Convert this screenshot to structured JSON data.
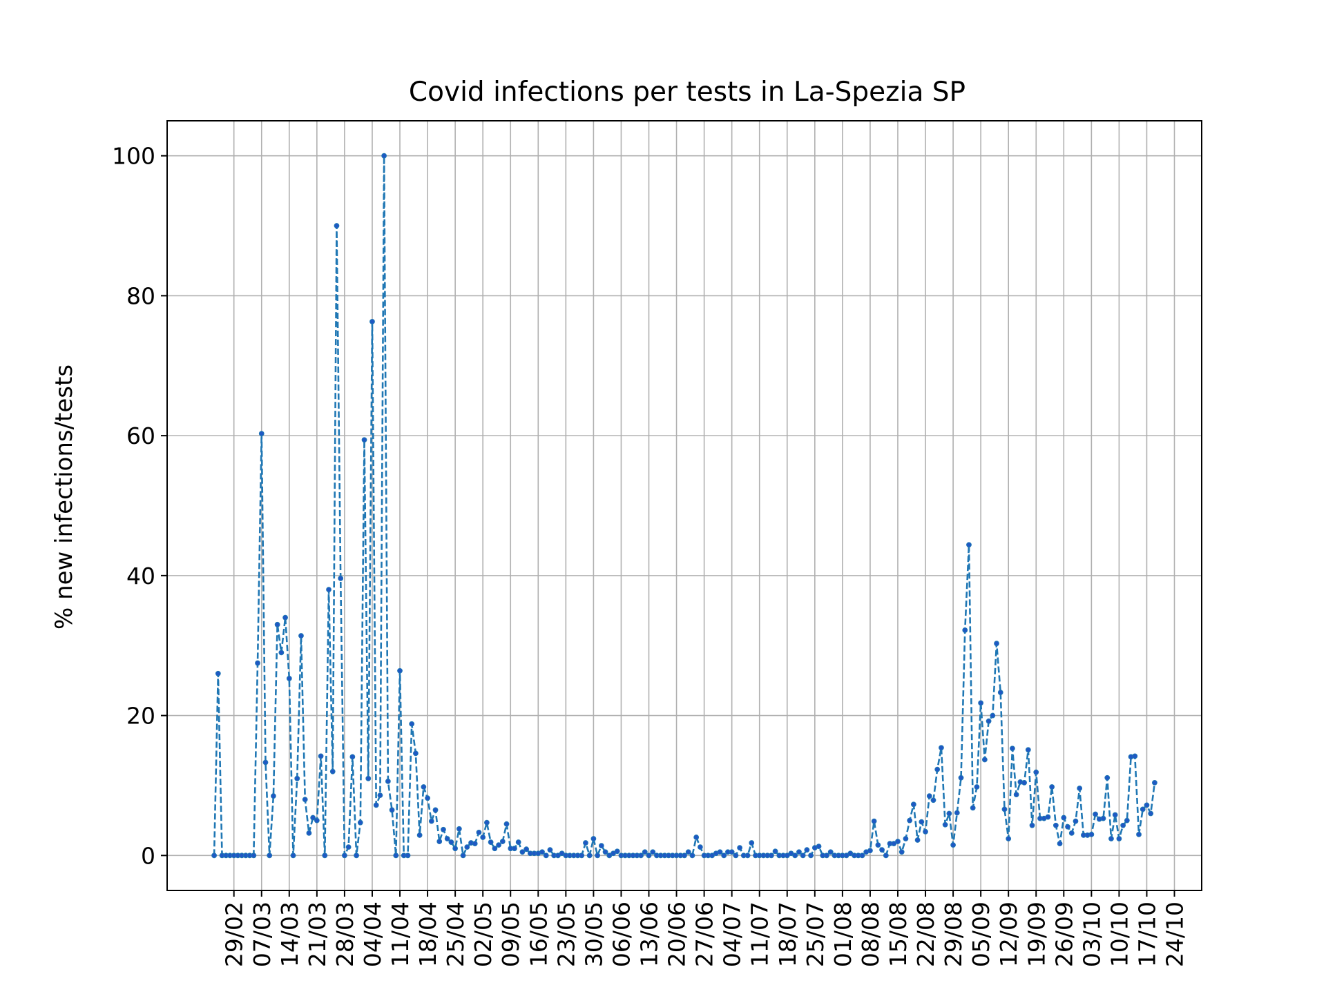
{
  "chart_data": {
    "type": "line",
    "title": "Covid infections per tests in La-Spezia SP",
    "xlabel": "",
    "ylabel": "% new infections/tests",
    "ylim": [
      -5,
      105
    ],
    "yticks": [
      0,
      20,
      40,
      60,
      80,
      100
    ],
    "x_tick_labels": [
      "29/02",
      "07/03",
      "14/03",
      "21/03",
      "28/03",
      "04/04",
      "11/04",
      "18/04",
      "25/04",
      "02/05",
      "09/05",
      "16/05",
      "23/05",
      "30/05",
      "06/06",
      "13/06",
      "20/06",
      "27/06",
      "04/07",
      "11/07",
      "18/07",
      "25/07",
      "01/08",
      "08/08",
      "15/08",
      "22/08",
      "29/08",
      "05/09",
      "12/09",
      "19/09",
      "26/09",
      "03/10",
      "10/10",
      "17/10",
      "24/10"
    ],
    "grid": true,
    "line_style": "dashed",
    "marker": "dot",
    "color": "#1f77b4",
    "series": [
      {
        "name": "",
        "start_date": "2020-02-24",
        "values": [
          0,
          26,
          0,
          0,
          0,
          0,
          0,
          0,
          0,
          0,
          0,
          27.5,
          60.3,
          13.3,
          0,
          8.5,
          33,
          29,
          34,
          25.3,
          0,
          11,
          31.4,
          8,
          3.2,
          5.4,
          5,
          14.2,
          0,
          38,
          12,
          90,
          39.6,
          0,
          1.2,
          14.1,
          0,
          4.7,
          59.4,
          11,
          76.3,
          7.2,
          8.6,
          100,
          10.6,
          6.5,
          0,
          26.4,
          0,
          0,
          18.8,
          14.6,
          2.9,
          9.8,
          8.2,
          4.9,
          6.5,
          2,
          3.7,
          2.4,
          1.9,
          1,
          3.8,
          0,
          1.2,
          1.8,
          1.7,
          3.3,
          2.6,
          4.7,
          1.9,
          1,
          1.5,
          2,
          4.5,
          1,
          1,
          1.9,
          0.5,
          0.9,
          0.3,
          0.3,
          0.3,
          0.5,
          0,
          0.8,
          0,
          0,
          0.3,
          0,
          0,
          0,
          0,
          0,
          1.8,
          0,
          2.4,
          0,
          1.4,
          0.5,
          0,
          0.3,
          0.6,
          0,
          0,
          0,
          0,
          0,
          0,
          0.5,
          0,
          0.5,
          0,
          0,
          0,
          0,
          0,
          0,
          0,
          0,
          0.5,
          0,
          2.6,
          1.2,
          0,
          0,
          0,
          0.3,
          0.5,
          0,
          0.5,
          0.5,
          0,
          1.1,
          0,
          0,
          1.8,
          0,
          0,
          0,
          0,
          0,
          0.6,
          0,
          0,
          0,
          0.3,
          0,
          0.5,
          0,
          0.8,
          0,
          1.1,
          1.3,
          0,
          0,
          0.5,
          0,
          0,
          0,
          0,
          0.3,
          0,
          0,
          0,
          0.5,
          0.7,
          4.9,
          1.5,
          0.8,
          0,
          1.7,
          1.7,
          2,
          0.5,
          2.4,
          5,
          7.3,
          2.2,
          4.8,
          3.4,
          8.5,
          7.9,
          12.3,
          15.4,
          4.4,
          6,
          1.5,
          6.1,
          11.1,
          32.2,
          44.4,
          6.8,
          9.8,
          21.8,
          13.7,
          19.2,
          20,
          30.3,
          23.3,
          6.6,
          2.4,
          15.3,
          8.7,
          10.5,
          10.4,
          15.1,
          4.3,
          11.9,
          5.3,
          5.3,
          5.5,
          9.8,
          4.3,
          1.7,
          5.4,
          4.1,
          3.2,
          4.9,
          9.6,
          2.9,
          2.9,
          3,
          5.9,
          5.2,
          5.3,
          11.1,
          2.4,
          5.8,
          2.4,
          4.3,
          5,
          14.1,
          14.2,
          3,
          6.6,
          7.2,
          6,
          10.4
        ]
      }
    ]
  }
}
